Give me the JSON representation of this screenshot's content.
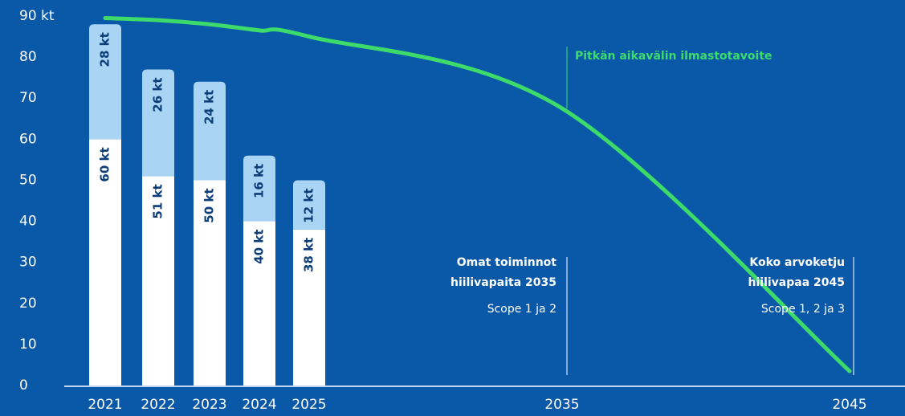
{
  "chart_data": {
    "type": "bar",
    "stacked": true,
    "categories": [
      "2021",
      "2022",
      "2023",
      "2024",
      "2025",
      "2035",
      "2045"
    ],
    "series": [
      {
        "color": "#ffffff",
        "values": [
          60,
          51,
          50,
          40,
          38,
          null,
          null
        ],
        "value_labels": [
          "60 kt",
          "51 kt",
          "50 kt",
          "40 kt",
          "38 kt",
          null,
          null
        ]
      },
      {
        "color": "#a9d4f4",
        "values": [
          28,
          26,
          24,
          16,
          12,
          null,
          null
        ],
        "value_labels": [
          "28 kt",
          "26 kt",
          "24 kt",
          "16 kt",
          "12 kt",
          null,
          null
        ]
      },
      {
        "name": "Pitkän aikavälin ilmastotavoite",
        "type": "line",
        "color": "#3ddc6a",
        "values": [
          89.5,
          89,
          88,
          86.5,
          85,
          67.5,
          3.5
        ]
      }
    ],
    "ylim": [
      0,
      90
    ],
    "yticks": [
      0,
      10,
      20,
      30,
      40,
      50,
      60,
      70,
      80,
      {
        "value": 90,
        "label": "90 kt"
      }
    ],
    "annotations": [
      {
        "lines": [
          "Omat toiminnot",
          "hiilivapaita 2035"
        ],
        "sub": "Scope 1 ja 2"
      },
      {
        "lines": [
          "Koko arvoketju",
          "hiilivapaa 2045"
        ],
        "sub": "Scope 1, 2 ja 3"
      }
    ]
  }
}
